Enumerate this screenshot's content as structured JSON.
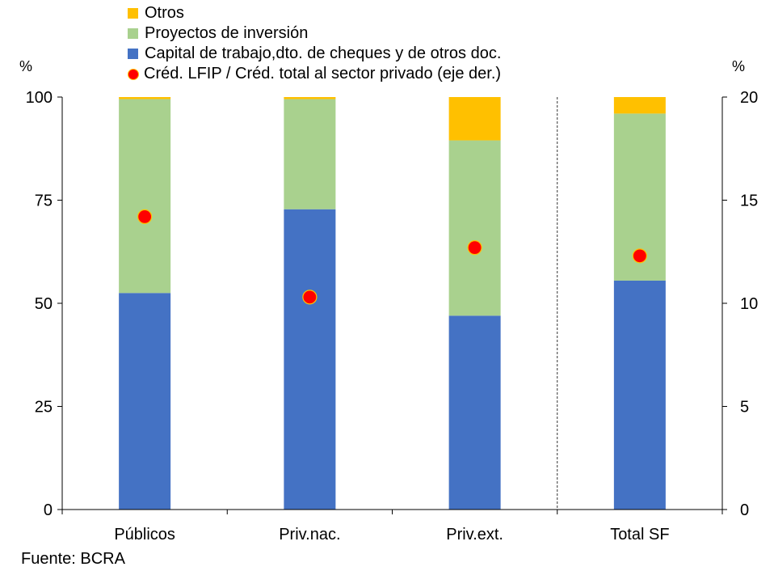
{
  "chart_data": {
    "type": "bar",
    "stacked": true,
    "categories": [
      "Públicos",
      "Priv.nac.",
      "Priv.ext.",
      "Total SF"
    ],
    "series": [
      {
        "name": "Capital de trabajo,dto. de cheques y de otros doc.",
        "color": "#4472C4",
        "values": [
          52.5,
          72.8,
          47.0,
          55.5
        ]
      },
      {
        "name": "Proyectos de inversión",
        "color": "#A9D18E",
        "values": [
          47.0,
          26.7,
          42.5,
          40.5
        ]
      },
      {
        "name": "Otros",
        "color": "#FFC000",
        "values": [
          0.5,
          0.5,
          10.5,
          4.0
        ]
      }
    ],
    "secondary_series": {
      "name": "Créd. LFIP / Créd. total  al sector privado (eje der.)",
      "color": "#FF0000",
      "type": "scatter",
      "axis": "right",
      "values": [
        14.2,
        10.3,
        12.7,
        12.3
      ]
    },
    "y_left": {
      "label": "%",
      "ylim": [
        0,
        100
      ],
      "ticks": [
        "0",
        "25",
        "50",
        "75",
        "100"
      ]
    },
    "y_right": {
      "label": "%",
      "ylim": [
        0,
        20
      ],
      "ticks": [
        "0",
        "5",
        "10",
        "15",
        "20"
      ]
    },
    "legend_placement": "top",
    "legend_order": [
      "Otros",
      "Proyectos de inversión",
      "Capital de trabajo,dto. de cheques y de otros doc.",
      "Créd. LFIP / Créd. total  al sector privado (eje der.)"
    ],
    "separator": "dashed line between Priv.ext. and Total SF",
    "source": "Fuente: BCRA"
  }
}
